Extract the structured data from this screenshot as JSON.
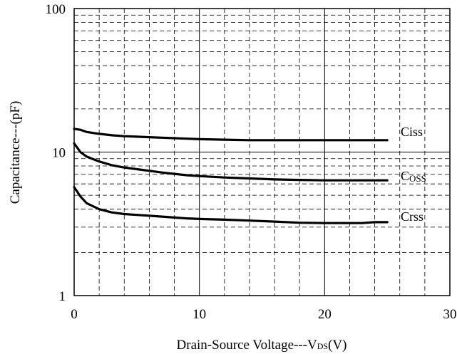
{
  "chart_data": {
    "type": "line",
    "title": "",
    "xlabel": "Drain-Source Voltage---V",
    "xlabel_sub": "DS",
    "xlabel_unit": "(V)",
    "ylabel": "Capacitance---(pF)",
    "xlim": [
      0,
      30
    ],
    "ylim": [
      1,
      100
    ],
    "yscale": "log",
    "grid": "major solid, minor dashed",
    "x_ticks": [
      "0",
      "10",
      "20",
      "30"
    ],
    "y_ticks": [
      "1",
      "10",
      "100"
    ],
    "series": [
      {
        "name": "Ciss",
        "x": [
          0,
          0.5,
          1,
          2,
          3,
          4,
          5,
          6,
          7,
          8,
          9,
          10,
          12,
          14,
          16,
          18,
          20,
          22,
          24,
          25
        ],
        "y": [
          14.5,
          14.3,
          13.8,
          13.4,
          13.1,
          12.9,
          12.8,
          12.7,
          12.6,
          12.5,
          12.4,
          12.3,
          12.2,
          12.1,
          12.1,
          12.1,
          12.1,
          12.1,
          12.1,
          12.1
        ],
        "label_parts": [
          {
            "text": "Ciss",
            "sub": false
          }
        ]
      },
      {
        "name": "Coss",
        "x": [
          0,
          0.5,
          1,
          2,
          3,
          4,
          5,
          6,
          7,
          8,
          9,
          10,
          12,
          14,
          16,
          18,
          20,
          22,
          24,
          25
        ],
        "y": [
          11.5,
          10.0,
          9.3,
          8.6,
          8.1,
          7.8,
          7.6,
          7.4,
          7.2,
          7.05,
          6.9,
          6.8,
          6.65,
          6.55,
          6.45,
          6.4,
          6.35,
          6.35,
          6.35,
          6.35
        ],
        "label_parts": [
          {
            "text": "C",
            "sub": false
          },
          {
            "text": "OSS",
            "sub": true
          }
        ]
      },
      {
        "name": "Crss",
        "x": [
          0,
          0.5,
          1,
          2,
          3,
          4,
          5,
          6,
          7,
          8,
          9,
          10,
          12,
          14,
          16,
          18,
          20,
          22,
          23,
          24,
          25
        ],
        "y": [
          5.7,
          4.9,
          4.4,
          4.0,
          3.8,
          3.7,
          3.65,
          3.6,
          3.55,
          3.5,
          3.45,
          3.42,
          3.38,
          3.33,
          3.28,
          3.22,
          3.2,
          3.2,
          3.2,
          3.25,
          3.25
        ],
        "label_parts": [
          {
            "text": "Crss",
            "sub": false
          }
        ]
      }
    ]
  }
}
